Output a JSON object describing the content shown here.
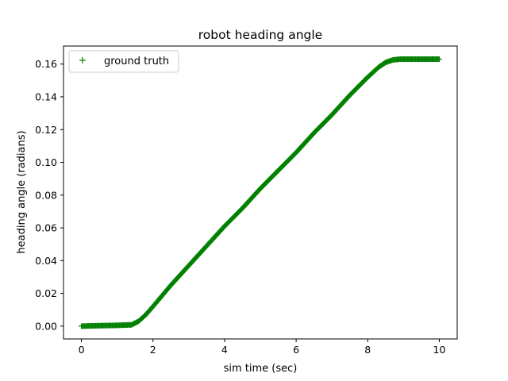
{
  "chart_data": {
    "type": "scatter",
    "title": "robot heading angle",
    "xlabel": "sim time (sec)",
    "ylabel": "heading angle (radians)",
    "xlim": [
      -0.5,
      10.5
    ],
    "ylim": [
      -0.0078,
      0.171
    ],
    "xticks": [
      "0",
      "2",
      "4",
      "6",
      "8",
      "10"
    ],
    "yticks": [
      "0.00",
      "0.02",
      "0.04",
      "0.06",
      "0.08",
      "0.10",
      "0.12",
      "0.14",
      "0.16"
    ],
    "xtick_values": [
      0,
      2,
      4,
      6,
      8,
      10
    ],
    "ytick_values": [
      0,
      0.02,
      0.04,
      0.06,
      0.08,
      0.1,
      0.12,
      0.14,
      0.16
    ],
    "grid": false,
    "legend_position": "top-left",
    "series": [
      {
        "name": "ground truth",
        "color": "#008000",
        "marker": "+",
        "x": [
          0,
          0.5,
          1.0,
          1.4,
          1.6,
          1.8,
          2.0,
          2.5,
          3.0,
          3.5,
          4.0,
          4.5,
          5.0,
          5.5,
          6.0,
          6.5,
          7.0,
          7.5,
          8.0,
          8.3,
          8.5,
          8.7,
          8.9,
          9.2,
          9.6,
          10.0
        ],
        "y": [
          0.0,
          0.0003,
          0.0005,
          0.0008,
          0.003,
          0.007,
          0.012,
          0.025,
          0.037,
          0.049,
          0.061,
          0.072,
          0.084,
          0.095,
          0.106,
          0.118,
          0.129,
          0.141,
          0.152,
          0.158,
          0.161,
          0.1625,
          0.163,
          0.163,
          0.163,
          0.163
        ]
      }
    ]
  }
}
